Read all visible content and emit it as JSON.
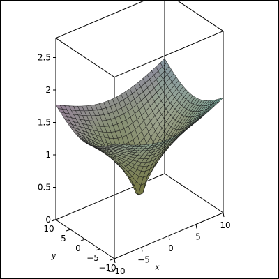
{
  "chart_data": {
    "type": "surface3d",
    "title": "",
    "function_shape": "sqrt-cusp",
    "x_axis": {
      "label": "x",
      "range": [
        -10,
        10
      ],
      "ticks": [
        10,
        5,
        0,
        -5,
        -10
      ],
      "tick_labels": [
        "10",
        "5",
        "0",
        "−5",
        "−10"
      ]
    },
    "y_axis": {
      "label": "y",
      "range": [
        -10,
        10
      ],
      "ticks": [
        -10,
        -5,
        0,
        5,
        10
      ],
      "tick_labels": [
        "−10",
        "−5",
        "0",
        "5",
        "10"
      ]
    },
    "z_axis": {
      "label": "",
      "range": [
        0,
        2.8
      ],
      "ticks": [
        0,
        0.5,
        1,
        1.5,
        2,
        2.5
      ],
      "tick_labels": [
        "0",
        "0.5",
        "1",
        "1.5",
        "2",
        "2.5"
      ]
    },
    "grid_lines": 25,
    "colors": {
      "frame": "#000000",
      "mesh": "#1a1a1a",
      "low": "#6b6b2c",
      "mid": "#8f9a86",
      "corner_left": "#a24bb8",
      "corner_right": "#4fd6d6",
      "corner_back": "#7f78e6",
      "highlight": "#f2f0ff"
    }
  }
}
